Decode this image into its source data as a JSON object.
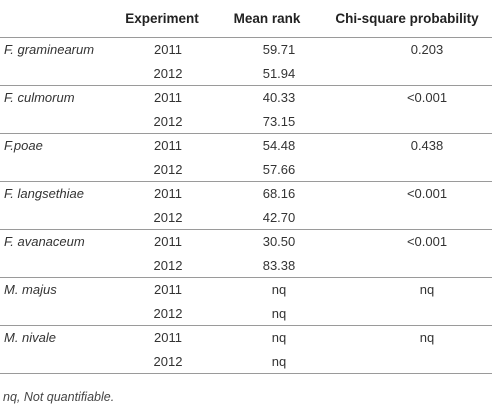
{
  "table": {
    "headers": [
      "",
      "Experiment",
      "Mean rank",
      "Chi-square probability"
    ],
    "groups": [
      {
        "species": "F. graminearum",
        "rows": [
          {
            "year": "2011",
            "rank": "59.71",
            "prob": "0.203"
          },
          {
            "year": "2012",
            "rank": "51.94",
            "prob": ""
          }
        ]
      },
      {
        "species": "F. culmorum",
        "rows": [
          {
            "year": "2011",
            "rank": "40.33",
            "prob": "<0.001"
          },
          {
            "year": "2012",
            "rank": "73.15",
            "prob": ""
          }
        ]
      },
      {
        "species": "F.poae",
        "rows": [
          {
            "year": "2011",
            "rank": "54.48",
            "prob": "0.438"
          },
          {
            "year": "2012",
            "rank": "57.66",
            "prob": ""
          }
        ]
      },
      {
        "species": "F. langsethiae",
        "rows": [
          {
            "year": "2011",
            "rank": "68.16",
            "prob": "<0.001"
          },
          {
            "year": "2012",
            "rank": "42.70",
            "prob": ""
          }
        ]
      },
      {
        "species": "F. avanaceum",
        "rows": [
          {
            "year": "2011",
            "rank": "30.50",
            "prob": "<0.001"
          },
          {
            "year": "2012",
            "rank": "83.38",
            "prob": ""
          }
        ]
      },
      {
        "species": "M. majus",
        "rows": [
          {
            "year": "2011",
            "rank": "nq",
            "prob": "nq"
          },
          {
            "year": "2012",
            "rank": "nq",
            "prob": ""
          }
        ]
      },
      {
        "species": "M. nivale",
        "rows": [
          {
            "year": "2011",
            "rank": "nq",
            "prob": "nq"
          },
          {
            "year": "2012",
            "rank": "nq",
            "prob": ""
          }
        ]
      }
    ]
  },
  "footnote": "nq, Not quantifiable."
}
